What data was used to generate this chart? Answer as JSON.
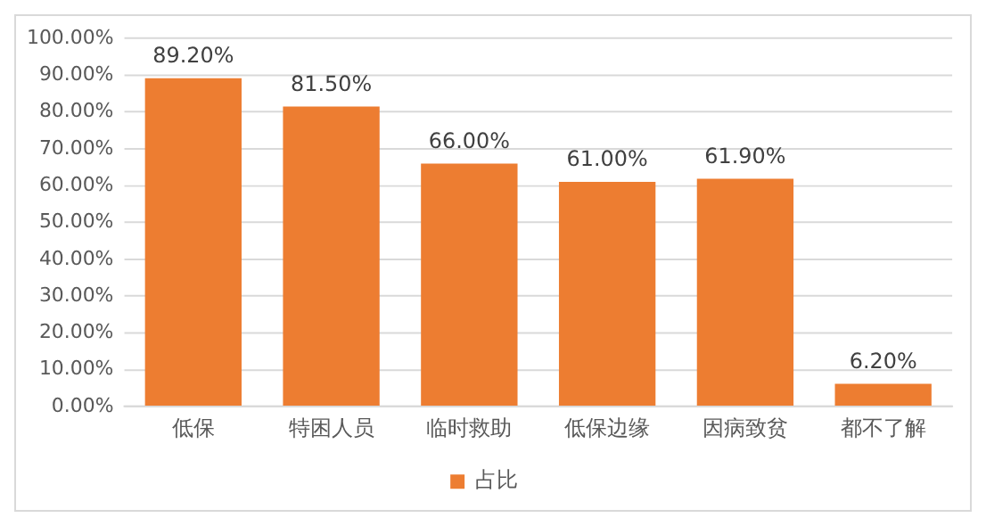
{
  "chart_data": {
    "type": "bar",
    "categories": [
      "低保",
      "特困人员",
      "临时救助",
      "低保边缘",
      "因病致贫",
      "都不了解"
    ],
    "series": [
      {
        "name": "占比",
        "color": "#ed7d31",
        "values": [
          89.2,
          81.5,
          66,
          61,
          61.9,
          6.2
        ],
        "value_labels": [
          "89.20%",
          "81.50%",
          "66.00%",
          "61.00%",
          "61.90%",
          "6.20%"
        ]
      }
    ],
    "ylim": [
      0,
      100
    ],
    "yticks": [
      {
        "value": 0,
        "label": "0.00%"
      },
      {
        "value": 10,
        "label": "10.00%"
      },
      {
        "value": 20,
        "label": "20.00%"
      },
      {
        "value": 30,
        "label": "30.00%"
      },
      {
        "value": 40,
        "label": "40.00%"
      },
      {
        "value": 50,
        "label": "50.00%"
      },
      {
        "value": 60,
        "label": "60.00%"
      },
      {
        "value": 70,
        "label": "70.00%"
      },
      {
        "value": 80,
        "label": "80.00%"
      },
      {
        "value": 90,
        "label": "90.00%"
      },
      {
        "value": 100,
        "label": "100.00%"
      }
    ],
    "grid": "y",
    "legend": "bottom"
  }
}
